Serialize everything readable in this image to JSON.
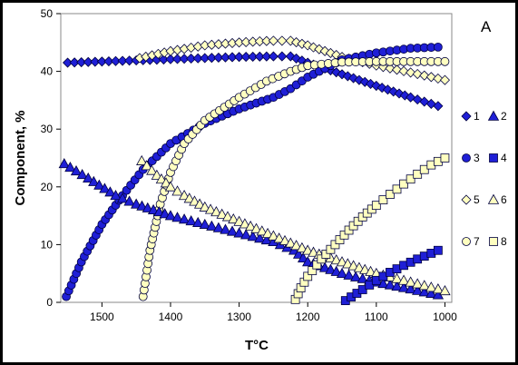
{
  "chart_data": {
    "type": "scatter",
    "panel_label": "A",
    "xlabel": "T°C",
    "ylabel": "Component, %",
    "xlim": [
      1560,
      990
    ],
    "ylim": [
      0,
      50
    ],
    "x_reversed": true,
    "xticks": [
      1500,
      1400,
      1300,
      1200,
      1100,
      1000
    ],
    "yticks": [
      0,
      10,
      20,
      30,
      40,
      50
    ],
    "grid": false,
    "legend_position": "right",
    "series": [
      {
        "name": "1",
        "marker": "diamond",
        "fill": "#1f1fd6",
        "x": [
          1550,
          1500,
          1450,
          1400,
          1350,
          1300,
          1250,
          1225,
          1200,
          1150,
          1100,
          1050,
          1010
        ],
        "y": [
          41.5,
          41.7,
          41.9,
          42.1,
          42.3,
          42.5,
          42.6,
          42.6,
          41.5,
          39.5,
          37.5,
          35.5,
          34
        ]
      },
      {
        "name": "2",
        "marker": "triangle",
        "fill": "#1f1fd6",
        "x": [
          1555,
          1520,
          1480,
          1450,
          1400,
          1350,
          1300,
          1250,
          1220,
          1200,
          1150,
          1100,
          1050,
          1010
        ],
        "y": [
          24,
          21.5,
          18.5,
          17,
          15,
          13.5,
          12,
          10.5,
          9,
          7,
          5,
          3.5,
          2.3,
          1.3
        ]
      },
      {
        "name": "3",
        "marker": "circle",
        "fill": "#1f1fd6",
        "x": [
          1552,
          1530,
          1500,
          1470,
          1440,
          1400,
          1350,
          1300,
          1250,
          1225,
          1200,
          1150,
          1100,
          1050,
          1010
        ],
        "y": [
          1,
          7,
          13.5,
          18.5,
          23,
          27.5,
          31,
          33.5,
          35.5,
          37,
          39,
          42,
          43.2,
          44,
          44.2
        ]
      },
      {
        "name": "4",
        "marker": "square",
        "fill": "#1f1fd6",
        "x": [
          1145,
          1120,
          1100,
          1080,
          1060,
          1040,
          1020,
          1010
        ],
        "y": [
          0.3,
          2.2,
          3.8,
          5.2,
          6.4,
          7.5,
          8.5,
          9
        ]
      },
      {
        "name": "5",
        "marker": "diamond",
        "fill": "#ffffc0",
        "x": [
          1445,
          1400,
          1350,
          1300,
          1270,
          1250,
          1225,
          1200,
          1175,
          1150,
          1100,
          1050,
          1000
        ],
        "y": [
          42.3,
          43.5,
          44.5,
          45,
          45.2,
          45.3,
          45.3,
          44.5,
          43.5,
          42.5,
          41,
          39.8,
          38.5
        ]
      },
      {
        "name": "6",
        "marker": "triangle",
        "fill": "#ffffc0",
        "x": [
          1442,
          1420,
          1400,
          1380,
          1350,
          1300,
          1250,
          1200,
          1150,
          1100,
          1050,
          1000
        ],
        "y": [
          24.5,
          22,
          20,
          18.5,
          16.5,
          14,
          11.5,
          9,
          7,
          5,
          3.5,
          2
        ]
      },
      {
        "name": "7",
        "marker": "circle",
        "fill": "#ffffc0",
        "x": [
          1440,
          1430,
          1415,
          1400,
          1380,
          1350,
          1300,
          1260,
          1225,
          1200,
          1150,
          1100,
          1050,
          1000
        ],
        "y": [
          1,
          9,
          17,
          22.5,
          27.5,
          31.5,
          35.5,
          38.3,
          40,
          41,
          41.6,
          41.7,
          41.7,
          41.7
        ]
      },
      {
        "name": "8",
        "marker": "square",
        "fill": "#ffffc0",
        "x": [
          1218,
          1210,
          1200,
          1180,
          1160,
          1140,
          1120,
          1100,
          1080,
          1060,
          1040,
          1020,
          1000
        ],
        "y": [
          0.5,
          2.5,
          4.5,
          7.5,
          10,
          12.5,
          14.8,
          16.8,
          18.7,
          20.5,
          22.2,
          23.8,
          25
        ]
      }
    ]
  }
}
